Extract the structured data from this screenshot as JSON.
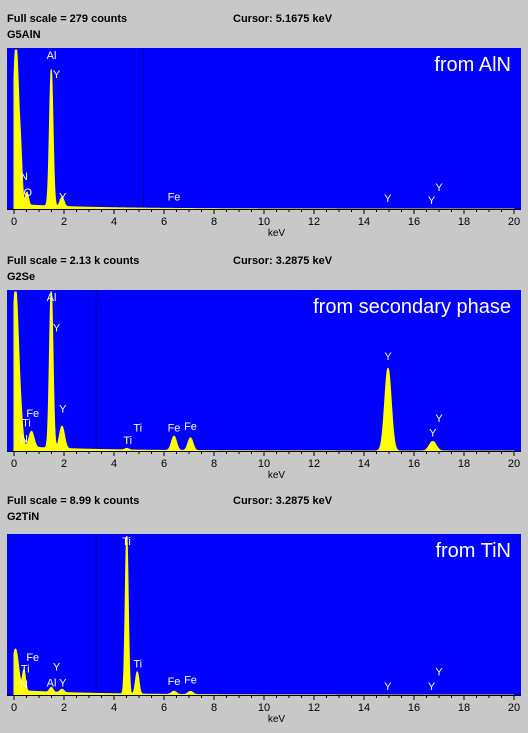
{
  "colors": {
    "plot_bg": "#0000ff",
    "spectrum": "#ffff00",
    "label": "#ffffff",
    "frame": "#c8c8c8",
    "cursor_line": "#000099"
  },
  "panels": [
    {
      "full_scale": "Full scale = 279  counts",
      "cursor": "Cursor:  5.1675 keV",
      "sample": "G5AlN",
      "title": "from AlN"
    },
    {
      "full_scale": "Full scale = 2.13 k counts",
      "cursor": "Cursor:  3.2875 keV",
      "sample": "G2Se",
      "title": "from secondary phase"
    },
    {
      "full_scale": "Full scale = 8.99 k counts",
      "cursor": "Cursor:  3.2875 keV",
      "sample": "G2TiN",
      "title": "from TiN"
    }
  ],
  "chart_data": [
    {
      "type": "line",
      "title": "from AlN",
      "xlabel": "keV",
      "xlim": [
        0,
        20
      ],
      "ylim": [
        0,
        1
      ],
      "xticks": [
        0,
        2,
        4,
        6,
        8,
        10,
        12,
        14,
        16,
        18,
        20
      ],
      "cursor_kev": 5.1675,
      "peaks": [
        {
          "x": 0.08,
          "height": 1.0,
          "width": 0.12
        },
        {
          "x": 0.28,
          "height": 0.13,
          "width": 0.05
        },
        {
          "x": 0.52,
          "height": 0.08,
          "width": 0.06
        },
        {
          "x": 1.49,
          "height": 0.86,
          "width": 0.07
        },
        {
          "x": 1.92,
          "height": 0.06,
          "width": 0.08
        }
      ],
      "background": {
        "level": 0.03,
        "decay": 0.5
      },
      "labels": [
        {
          "text": "Al",
          "x": 1.5,
          "y": 0.93
        },
        {
          "text": "Y",
          "x": 1.7,
          "y": 0.81
        },
        {
          "text": "N",
          "x": 0.4,
          "y": 0.17
        },
        {
          "text": "O",
          "x": 0.55,
          "y": 0.07
        },
        {
          "text": "Y",
          "x": 1.95,
          "y": 0.04
        },
        {
          "text": "Fe",
          "x": 6.4,
          "y": 0.04
        },
        {
          "text": "Y",
          "x": 14.95,
          "y": 0.03
        },
        {
          "text": "Y",
          "x": 16.7,
          "y": 0.02
        },
        {
          "text": "Y",
          "x": 17.0,
          "y": 0.1
        }
      ]
    },
    {
      "type": "line",
      "title": "from secondary phase",
      "xlabel": "keV",
      "xlim": [
        0,
        20
      ],
      "ylim": [
        0,
        1
      ],
      "xticks": [
        0,
        2,
        4,
        6,
        8,
        10,
        12,
        14,
        16,
        18,
        20
      ],
      "cursor_kev": 3.2875,
      "peaks": [
        {
          "x": 0.06,
          "height": 1.0,
          "width": 0.13
        },
        {
          "x": 0.3,
          "height": 0.06,
          "width": 0.06
        },
        {
          "x": 0.7,
          "height": 0.1,
          "width": 0.1
        },
        {
          "x": 1.49,
          "height": 1.0,
          "width": 0.07
        },
        {
          "x": 1.92,
          "height": 0.14,
          "width": 0.1
        },
        {
          "x": 4.51,
          "height": 0.01,
          "width": 0.08
        },
        {
          "x": 6.4,
          "height": 0.09,
          "width": 0.1
        },
        {
          "x": 7.06,
          "height": 0.08,
          "width": 0.1
        },
        {
          "x": 14.96,
          "height": 0.52,
          "width": 0.13
        },
        {
          "x": 16.75,
          "height": 0.06,
          "width": 0.14
        }
      ],
      "background": {
        "level": 0.03,
        "decay": 0.7
      },
      "labels": [
        {
          "text": "Al",
          "x": 1.5,
          "y": 0.93
        },
        {
          "text": "Y",
          "x": 1.7,
          "y": 0.74
        },
        {
          "text": "Fe",
          "x": 0.75,
          "y": 0.2
        },
        {
          "text": "Ti",
          "x": 0.5,
          "y": 0.14
        },
        {
          "text": "N",
          "x": 0.4,
          "y": 0.04
        },
        {
          "text": "Y",
          "x": 1.95,
          "y": 0.23
        },
        {
          "text": "Ti",
          "x": 4.95,
          "y": 0.11
        },
        {
          "text": "Ti",
          "x": 4.55,
          "y": 0.03
        },
        {
          "text": "Fe",
          "x": 6.4,
          "y": 0.11
        },
        {
          "text": "Fe",
          "x": 7.06,
          "y": 0.12
        },
        {
          "text": "Y",
          "x": 14.96,
          "y": 0.56
        },
        {
          "text": "Y",
          "x": 16.75,
          "y": 0.08
        },
        {
          "text": "Y",
          "x": 17.0,
          "y": 0.17
        }
      ]
    },
    {
      "type": "line",
      "title": "from TiN",
      "xlabel": "keV",
      "xlim": [
        0,
        20
      ],
      "ylim": [
        0,
        1
      ],
      "xticks": [
        0,
        2,
        4,
        6,
        8,
        10,
        12,
        14,
        16,
        18,
        20
      ],
      "cursor_kev": 3.2875,
      "peaks": [
        {
          "x": 0.06,
          "height": 0.26,
          "width": 0.12
        },
        {
          "x": 0.4,
          "height": 0.13,
          "width": 0.06
        },
        {
          "x": 1.49,
          "height": 0.03,
          "width": 0.07
        },
        {
          "x": 1.92,
          "height": 0.02,
          "width": 0.08
        },
        {
          "x": 4.51,
          "height": 1.0,
          "width": 0.06
        },
        {
          "x": 4.93,
          "height": 0.14,
          "width": 0.07
        },
        {
          "x": 6.4,
          "height": 0.02,
          "width": 0.1
        },
        {
          "x": 7.06,
          "height": 0.02,
          "width": 0.1
        }
      ],
      "background": {
        "level": 0.03,
        "decay": 0.4
      },
      "labels": [
        {
          "text": "Ti",
          "x": 4.5,
          "y": 0.93
        },
        {
          "text": "Fe",
          "x": 0.75,
          "y": 0.2
        },
        {
          "text": "Ti",
          "x": 0.45,
          "y": 0.13
        },
        {
          "text": "N",
          "x": 0.4,
          "y": 0.03
        },
        {
          "text": "Al",
          "x": 1.5,
          "y": 0.04
        },
        {
          "text": "Y",
          "x": 1.95,
          "y": 0.04
        },
        {
          "text": "Y",
          "x": 1.7,
          "y": 0.14
        },
        {
          "text": "Ti",
          "x": 4.95,
          "y": 0.16
        },
        {
          "text": "Fe",
          "x": 6.4,
          "y": 0.05
        },
        {
          "text": "Fe",
          "x": 7.06,
          "y": 0.06
        },
        {
          "text": "Y",
          "x": 14.95,
          "y": 0.02
        },
        {
          "text": "Y",
          "x": 16.7,
          "y": 0.02
        },
        {
          "text": "Y",
          "x": 17.0,
          "y": 0.11
        }
      ]
    }
  ]
}
